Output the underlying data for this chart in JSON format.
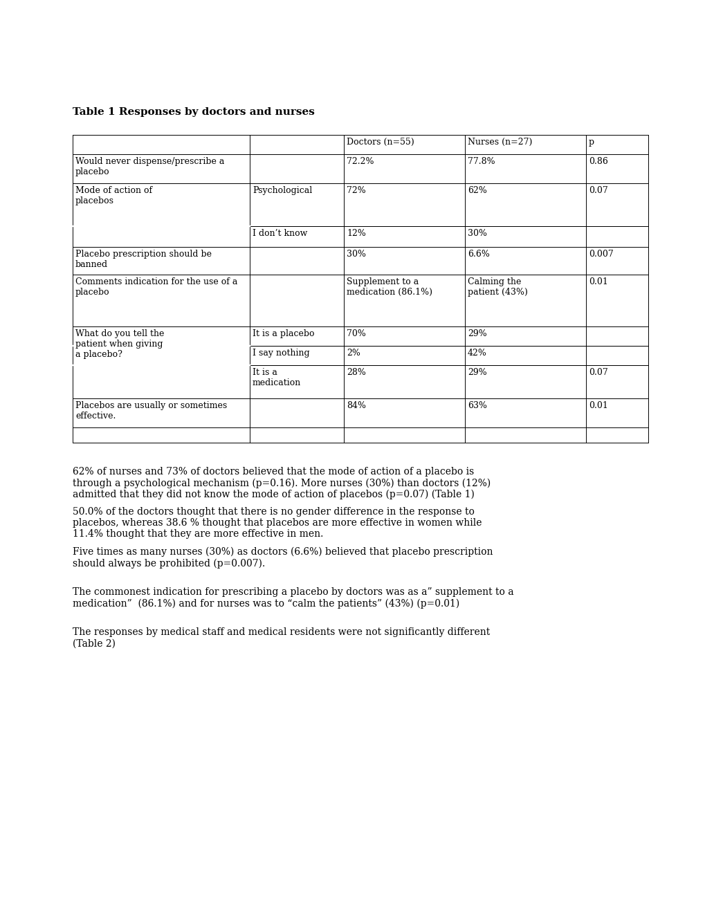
{
  "title": "Table 1 Responses by doctors and nurses",
  "bg_color": "#ffffff",
  "text_color": "#000000",
  "font_family": "DejaVu Serif",
  "title_fontsize": 11,
  "cell_fontsize": 9,
  "para_fontsize": 10,
  "paragraphs": [
    "62% of nurses and 73% of doctors believed that the mode of action of a placebo is\nthrough a psychological mechanism (p=0.16). More nurses (30%) than doctors (12%)\nadmitted that they did not know the mode of action of placebos (p=0.07) (Table 1)",
    "50.0% of the doctors thought that there is no gender difference in the response to\nplacebos, whereas 38.6 % thought that placebos are more effective in women while\n11.4% thought that they are more effective in men.",
    "Five times as many nurses (30%) as doctors (6.6%) believed that placebo prescription\nshould always be prohibited (p=0.007).",
    "The commonest indication for prescribing a placebo by doctors was as a” supplement to a\nmedication”  (86.1%) and for nurses was to “calm the patients” (43%) (p=0.01)",
    "The responses by medical staff and medical residents were not significantly different\n(Table 2)"
  ]
}
